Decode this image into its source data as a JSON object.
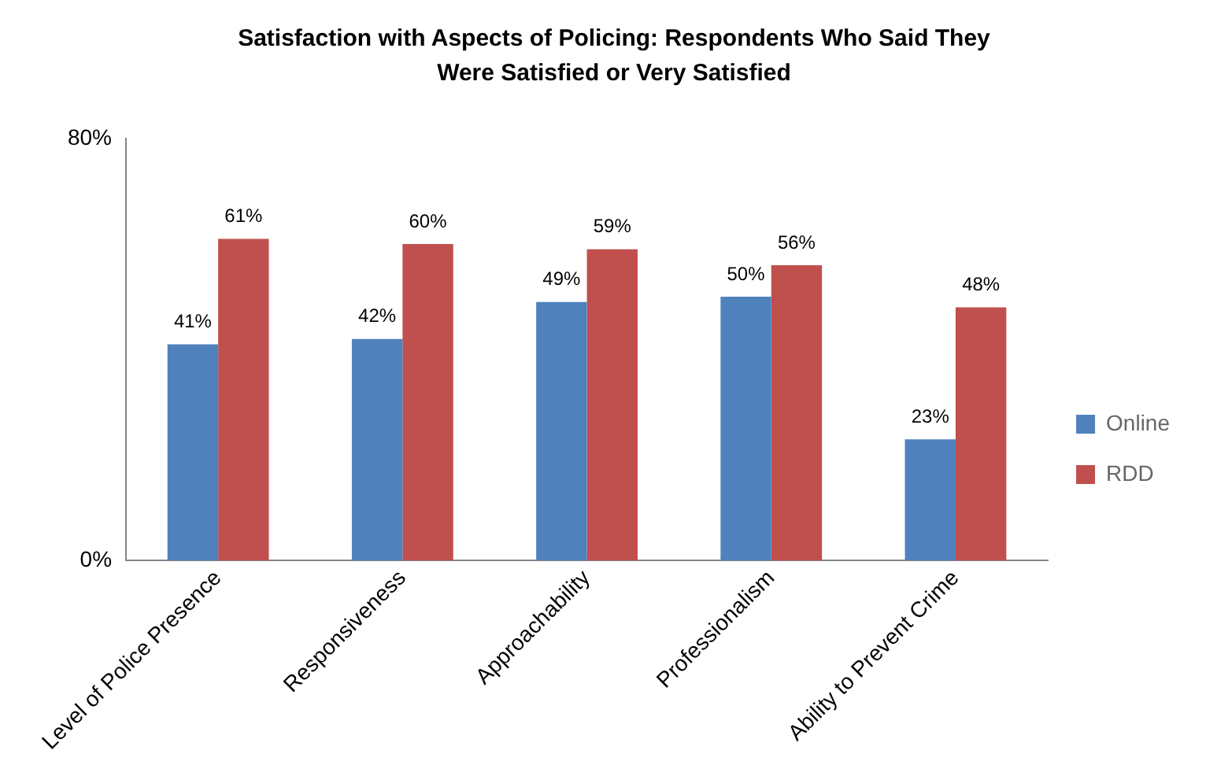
{
  "chart_data": {
    "type": "bar",
    "title": "Satisfaction with Aspects of Policing:  Respondents Who Said They Were Satisfied or Very Satisfied",
    "categories": [
      "Level of Police Presence",
      "Responsiveness",
      "Approachability",
      "Professionalism",
      "Ability to Prevent Crime"
    ],
    "series": [
      {
        "name": "Online",
        "color": "#4f81bd",
        "values": [
          41,
          42,
          49,
          50,
          23
        ],
        "value_labels": [
          "41%",
          "42%",
          "49%",
          "50%",
          "23%"
        ]
      },
      {
        "name": "RDD",
        "color": "#c0504d",
        "values": [
          61,
          60,
          59,
          56,
          48
        ],
        "value_labels": [
          "61%",
          "60%",
          "59%",
          "56%",
          "48%"
        ]
      }
    ],
    "ylim": [
      0,
      80
    ],
    "yticks": [
      {
        "value": 0,
        "label": "0%"
      },
      {
        "value": 80,
        "label": "80%"
      }
    ],
    "legend": "right"
  }
}
